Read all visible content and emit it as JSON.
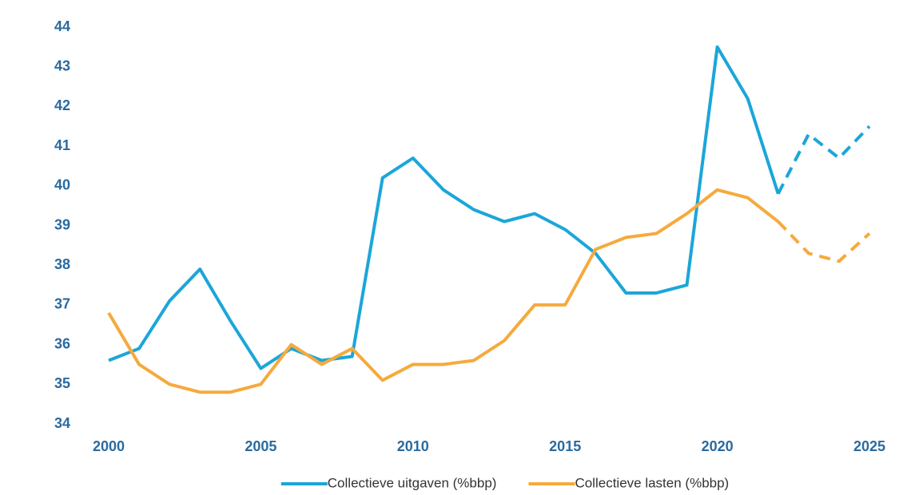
{
  "chart_data": {
    "type": "line",
    "x": [
      2000,
      2001,
      2002,
      2003,
      2004,
      2005,
      2006,
      2007,
      2008,
      2009,
      2010,
      2011,
      2012,
      2013,
      2014,
      2015,
      2016,
      2017,
      2018,
      2019,
      2020,
      2021,
      2022,
      2023,
      2024,
      2025
    ],
    "series": [
      {
        "name": "Collectieve uitgaven (%bbp)",
        "color": "#1ba6d9",
        "values": [
          35.6,
          35.9,
          37.1,
          37.9,
          36.6,
          35.4,
          35.9,
          35.6,
          35.7,
          40.2,
          40.7,
          39.9,
          39.4,
          39.1,
          39.3,
          38.9,
          38.3,
          37.3,
          37.3,
          37.5,
          43.5,
          42.2,
          39.8,
          41.3,
          40.7,
          41.5
        ]
      },
      {
        "name": "Collectieve lasten (%bbp)",
        "color": "#f5aa3c",
        "values": [
          36.8,
          35.5,
          35.0,
          34.8,
          34.8,
          35.0,
          36.0,
          35.5,
          35.9,
          35.1,
          35.5,
          35.5,
          35.6,
          36.1,
          37.0,
          37.0,
          38.4,
          38.7,
          38.8,
          39.3,
          39.9,
          39.7,
          39.1,
          38.3,
          38.1,
          38.8
        ]
      }
    ],
    "dashed_from": 2022,
    "xlim": [
      2000,
      2025
    ],
    "xticks": [
      2000,
      2005,
      2010,
      2015,
      2020,
      2025
    ],
    "ylim": [
      34,
      44
    ],
    "yticks": [
      34,
      35,
      36,
      37,
      38,
      39,
      40,
      41,
      42,
      43,
      44
    ],
    "grid": false,
    "legend": "bottom"
  }
}
